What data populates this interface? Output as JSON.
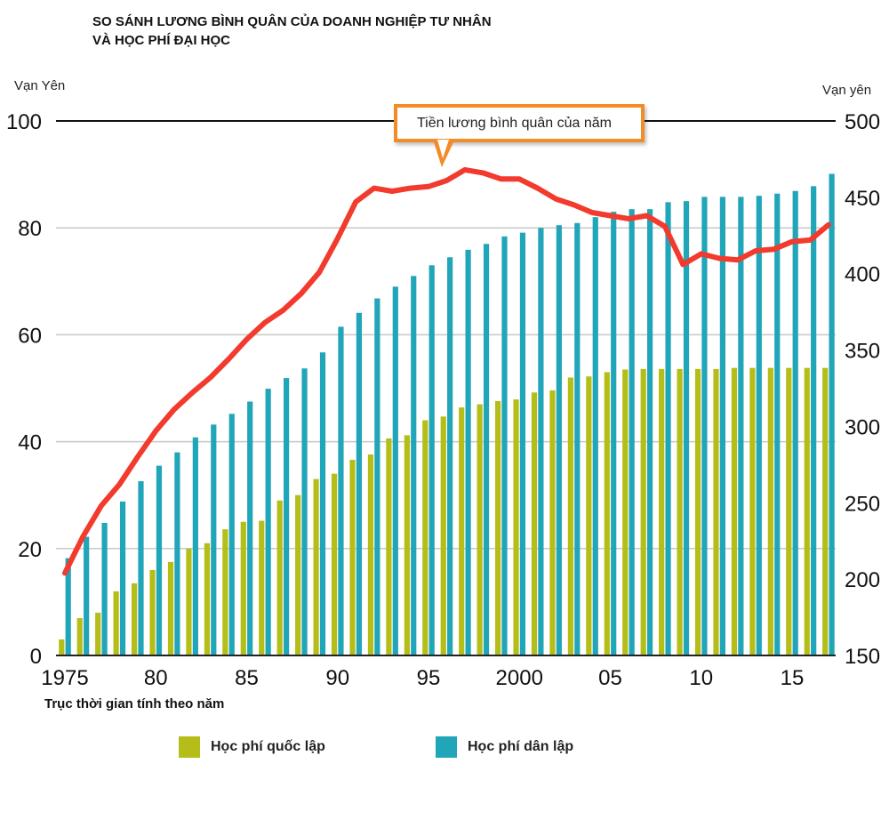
{
  "chart_data": {
    "type": "bar+line",
    "title": "SO SÁNH LƯƠNG BÌNH QUÂN CỦA DOANH NGHIỆP TƯ NHÂN VÀ HỌC PHÍ ĐẠI HỌC",
    "left_axis": {
      "unit": "Vạn Yên",
      "range": [
        0,
        100
      ],
      "ticks": [
        0,
        20,
        40,
        60,
        80,
        100
      ]
    },
    "right_axis": {
      "unit": "Vạn yên",
      "range": [
        150,
        500
      ],
      "ticks": [
        150,
        200,
        250,
        300,
        350,
        400,
        450,
        500
      ]
    },
    "x_axis": {
      "label": "Trục thời gian tính theo năm",
      "range": [
        1975,
        2017
      ],
      "ticks": [
        {
          "year": 1975,
          "label": "1975"
        },
        {
          "year": 1980,
          "label": "80"
        },
        {
          "year": 1985,
          "label": "85"
        },
        {
          "year": 1990,
          "label": "90"
        },
        {
          "year": 1995,
          "label": "95"
        },
        {
          "year": 2000,
          "label": "2000"
        },
        {
          "year": 2005,
          "label": "05"
        },
        {
          "year": 2010,
          "label": "10"
        },
        {
          "year": 2015,
          "label": "15"
        }
      ]
    },
    "years": [
      1975,
      1976,
      1977,
      1978,
      1979,
      1980,
      1981,
      1982,
      1983,
      1984,
      1985,
      1986,
      1987,
      1988,
      1989,
      1990,
      1991,
      1992,
      1993,
      1994,
      1995,
      1996,
      1997,
      1998,
      1999,
      2000,
      2001,
      2002,
      2003,
      2004,
      2005,
      2006,
      2007,
      2008,
      2009,
      2010,
      2011,
      2012,
      2013,
      2014,
      2015,
      2016,
      2017
    ],
    "series": [
      {
        "name": "Học phí quốc lập",
        "axis": "left",
        "kind": "bar",
        "color": "#b5bd18",
        "values": [
          3,
          7,
          8,
          12,
          13.5,
          16,
          17.5,
          20,
          21,
          23.6,
          25,
          25.2,
          29,
          30,
          33,
          34,
          36.6,
          37.6,
          40.6,
          41.2,
          44,
          44.7,
          46.4,
          47,
          47.6,
          47.9,
          49.2,
          49.6,
          52,
          52.2,
          53,
          53.5,
          53.6,
          53.6,
          53.6,
          53.6,
          53.6,
          53.8,
          53.8,
          53.8,
          53.8,
          53.8,
          53.8
        ]
      },
      {
        "name": "Học phí dân lập",
        "axis": "left",
        "kind": "bar",
        "color": "#21a5b8",
        "values": [
          18.2,
          22.2,
          24.8,
          28.8,
          32.6,
          35.5,
          38,
          40.8,
          43.2,
          45.2,
          47.5,
          49.9,
          51.9,
          53.7,
          56.7,
          61.5,
          64.1,
          66.8,
          69,
          71,
          73,
          74.5,
          75.9,
          77,
          78.4,
          79.1,
          80,
          80.5,
          80.9,
          82,
          83,
          83.5,
          83.5,
          84.8,
          85,
          85.8,
          85.8,
          85.8,
          86,
          86.4,
          86.9,
          87.8,
          90.1
        ]
      },
      {
        "name": "Tiền lương bình quân của năm",
        "axis": "right",
        "kind": "line",
        "color": "#f23a2d",
        "values": [
          204,
          228,
          248,
          262,
          280,
          297,
          311,
          322,
          332,
          344,
          357,
          368,
          376,
          387,
          401,
          423,
          447,
          456,
          454,
          456,
          457,
          461,
          468,
          466,
          462,
          462,
          456,
          449,
          445,
          440,
          438,
          436,
          438,
          431,
          406,
          413,
          410,
          409,
          415,
          416,
          421,
          422,
          432
        ]
      }
    ],
    "legend": [
      {
        "label": "Học phí quốc lập",
        "color": "#b5bd18"
      },
      {
        "label": "Học phí dân lập",
        "color": "#21a5b8"
      }
    ],
    "annotation": "Tiền lương bình quân của năm"
  }
}
